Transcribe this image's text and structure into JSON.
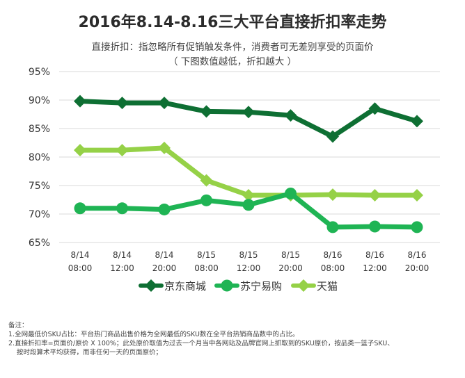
{
  "header": {
    "title": "2016年8.14-8.16三大平台直接折扣率走势",
    "subtitle_line1": "直接折扣：指忽略所有促销触发条件，消费者可无差别享受的页面价",
    "subtitle_line2": "（ 下图数值越低，折扣越大 ）"
  },
  "chart_data": {
    "type": "line",
    "categories": [
      [
        "8/14",
        "08:00"
      ],
      [
        "8/14",
        "12:00"
      ],
      [
        "8/14",
        "20:00"
      ],
      [
        "8/15",
        "08:00"
      ],
      [
        "8/15",
        "12:00"
      ],
      [
        "8/15",
        "20:00"
      ],
      [
        "8/16",
        "08:00"
      ],
      [
        "8/16",
        "12:00"
      ],
      [
        "8/16",
        "20:00"
      ]
    ],
    "yticks": [
      "65%",
      "70%",
      "75%",
      "80%",
      "85%",
      "90%",
      "95%"
    ],
    "ylim": [
      65,
      95
    ],
    "grid": true,
    "legend_position": "bottom",
    "series": [
      {
        "name": "京东商城",
        "color": "#0e6f33",
        "marker": "diamond",
        "values": [
          89.8,
          89.5,
          89.5,
          88.0,
          87.9,
          87.3,
          83.6,
          88.5,
          86.3
        ]
      },
      {
        "name": "苏宁易购",
        "color": "#1fb454",
        "marker": "circle",
        "values": [
          71.0,
          71.0,
          70.8,
          72.4,
          71.6,
          73.6,
          67.7,
          67.8,
          67.7
        ]
      },
      {
        "name": "天猫",
        "color": "#95d147",
        "marker": "diamond",
        "values": [
          81.2,
          81.2,
          81.6,
          75.9,
          73.3,
          73.3,
          73.4,
          73.3,
          73.3
        ]
      }
    ]
  },
  "notes": {
    "heading": "备注：",
    "line1": "1.全网最低价SKU占比：平台热门商品出售价格为全网最低的SKU数在全平台热销商品数中的占比。",
    "line2": "2.直接折扣率=页面价/原价 X 100%；此处原价取值为过去一个月当中各网站及品牌官网上抓取到的SKU原价，按品类一篮子SKU、",
    "line3": "按时段算术平均获得，而非任何一天的页面原价；"
  }
}
